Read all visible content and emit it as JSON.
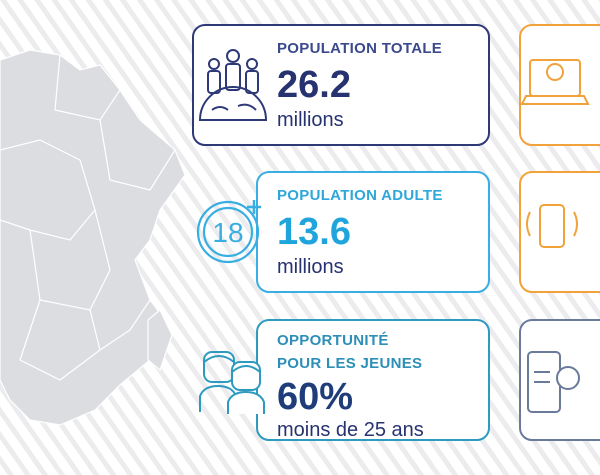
{
  "cards": [
    {
      "title": "POPULATION TOTALE",
      "value": "26.2",
      "unit": "millions"
    },
    {
      "title": "POPULATION ADULTE",
      "value": "13.6",
      "unit": "millions",
      "icon_text": "18"
    },
    {
      "title_lines": [
        "OPPORTUNITÉ",
        "POUR LES JEUNES"
      ],
      "value": "60%",
      "unit": "moins de 25 ans"
    }
  ]
}
